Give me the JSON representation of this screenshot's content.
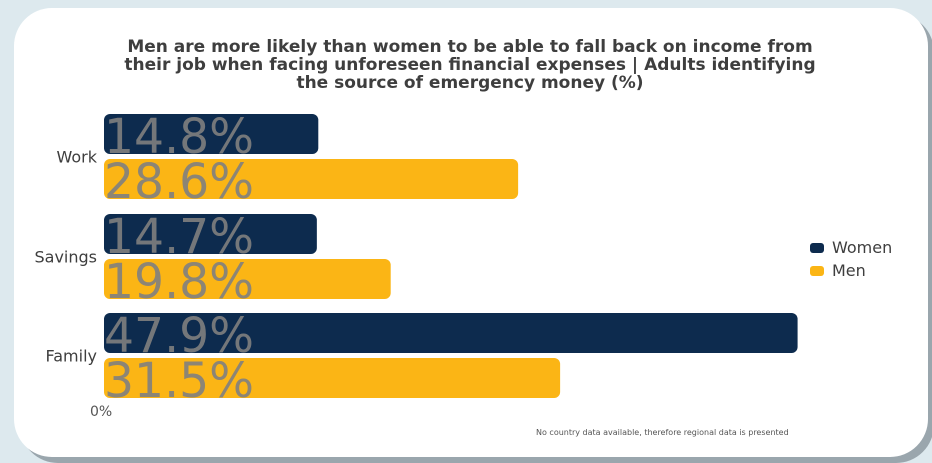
{
  "chart_data": {
    "type": "bar",
    "orientation": "horizontal",
    "title": "Men are more likely than women to be able to fall back on income from their job when facing unforeseen financial expenses | Adults identifying the source of emergency money (%)",
    "categories": [
      "Work",
      "Savings",
      "Family"
    ],
    "series": [
      {
        "name": "Women",
        "values": [
          14.8,
          14.7,
          47.9
        ],
        "labels": [
          "14.8%",
          "14.7%",
          "47.9%"
        ],
        "color": "#0d2b4e"
      },
      {
        "name": "Men",
        "values": [
          28.6,
          19.8,
          31.5
        ],
        "labels": [
          "28.6%",
          "19.8%",
          "31.5%"
        ],
        "color": "#fbb515"
      }
    ],
    "xlim": [
      0,
      50
    ],
    "x_tick_label": "0%",
    "legend_position": "right",
    "grid": false
  },
  "footnote": "No country data available, therefore regional data is presented"
}
